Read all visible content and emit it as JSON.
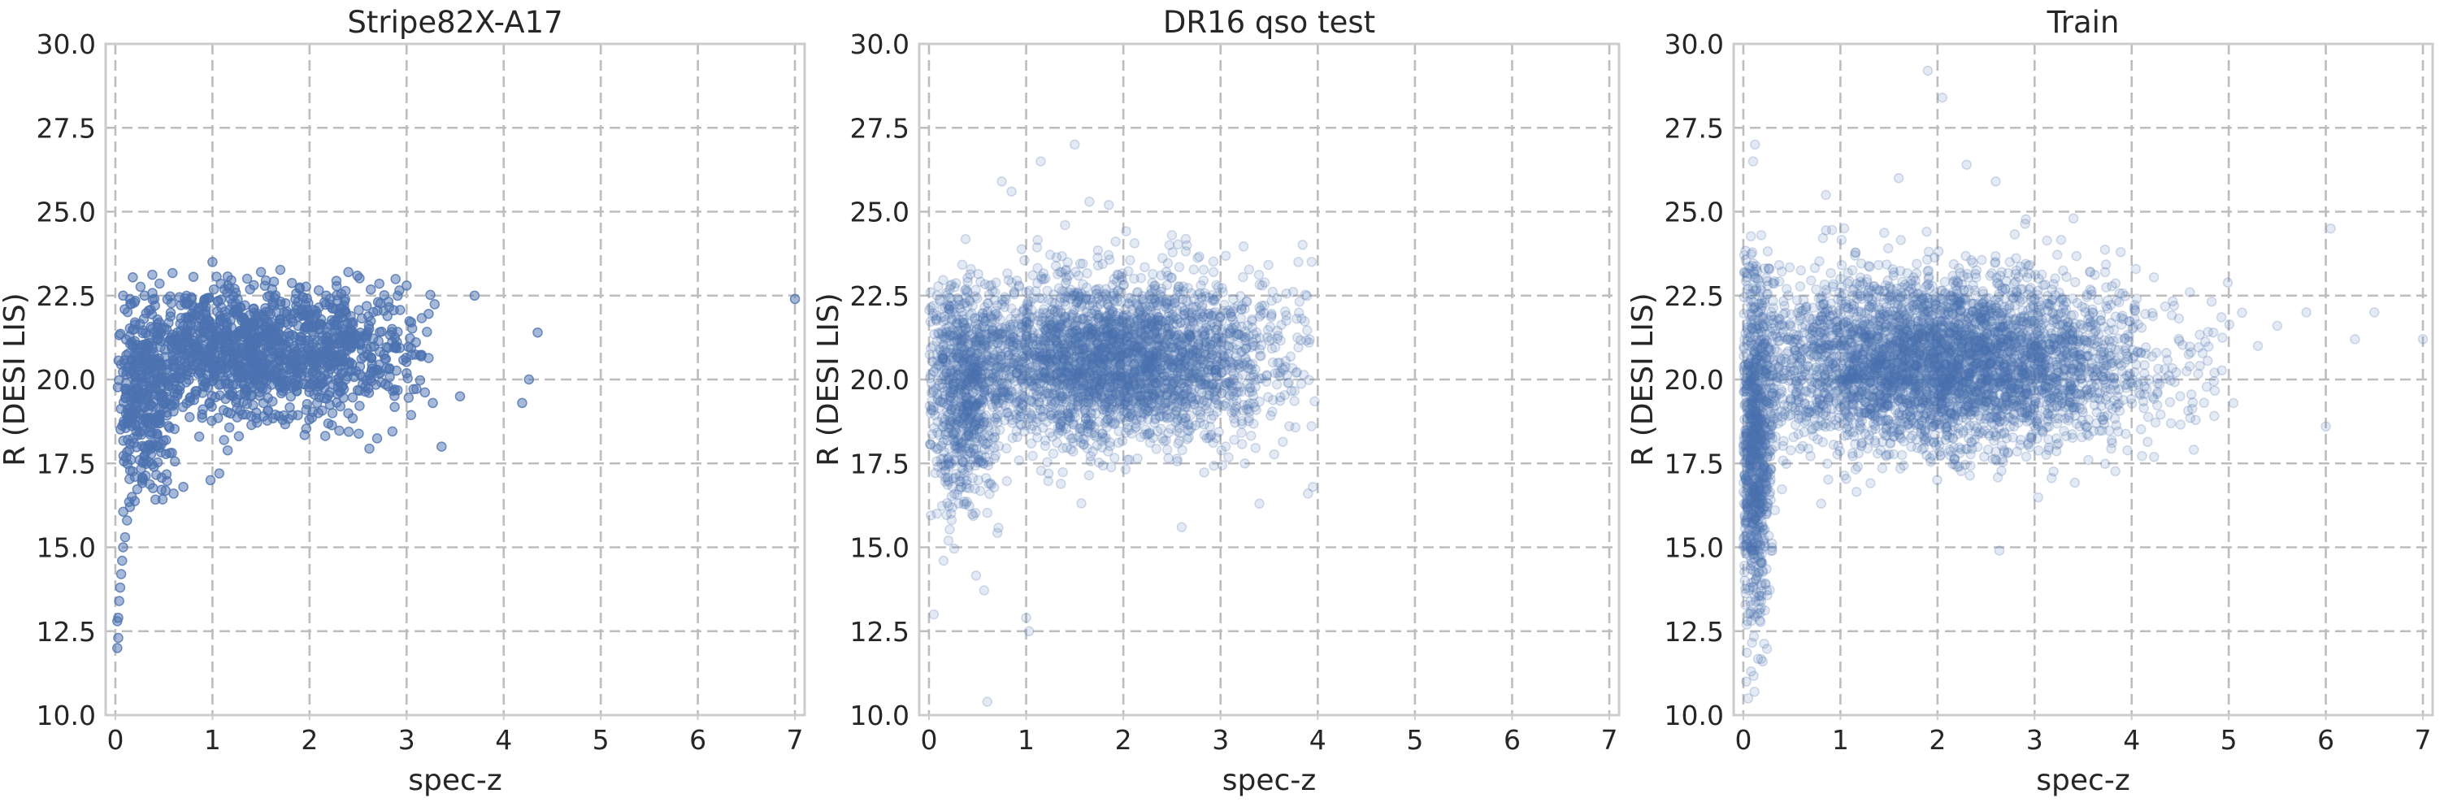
{
  "chart_data": [
    {
      "type": "scatter",
      "title": "Stripe82X-A17",
      "xlabel": "spec-z",
      "ylabel": "R (DESI LIS)",
      "xlim": [
        -0.1,
        7.1
      ],
      "ylim": [
        10.0,
        30.0
      ],
      "xticks": [
        "0",
        "1",
        "2",
        "3",
        "4",
        "5",
        "6",
        "7"
      ],
      "yticks": [
        "10.0",
        "12.5",
        "15.0",
        "17.5",
        "20.0",
        "22.5",
        "25.0",
        "27.5",
        "30.0"
      ],
      "grid": true,
      "marker_color": "#4c72b0",
      "marker_alpha": 0.5,
      "points": [
        [
          0.02,
          12.0
        ],
        [
          0.03,
          12.3
        ],
        [
          0.02,
          12.8
        ],
        [
          0.03,
          12.9
        ],
        [
          0.04,
          13.4
        ],
        [
          0.05,
          13.8
        ],
        [
          0.06,
          14.2
        ],
        [
          0.07,
          14.6
        ],
        [
          0.08,
          15.0
        ],
        [
          0.1,
          15.3
        ],
        [
          0.12,
          15.8
        ],
        [
          0.15,
          16.2
        ],
        [
          0.17,
          16.5
        ],
        [
          0.2,
          17.1
        ],
        [
          0.25,
          17.6
        ],
        [
          0.3,
          18.0
        ],
        [
          0.6,
          16.6
        ],
        [
          0.7,
          16.8
        ],
        [
          0.98,
          17.0
        ],
        [
          1.07,
          17.2
        ],
        [
          3.36,
          18.0
        ],
        [
          3.27,
          19.3
        ],
        [
          3.55,
          19.5
        ],
        [
          4.19,
          19.3
        ],
        [
          4.26,
          20.0
        ],
        [
          4.35,
          21.4
        ],
        [
          3.7,
          22.5
        ],
        [
          3.0,
          22.8
        ],
        [
          1.0,
          23.5
        ],
        [
          1.5,
          23.2
        ],
        [
          2.4,
          23.2
        ],
        [
          0.08,
          22.5
        ],
        [
          0.15,
          22.4
        ],
        [
          0.3,
          22.5
        ],
        [
          7.0,
          22.4
        ]
      ],
      "clouds": [
        {
          "cx": 1.3,
          "cy": 20.8,
          "sx": 0.65,
          "sy": 1.0,
          "n": 1100,
          "xmin": 0.05,
          "xmax": 3.2,
          "ymin": 17.0,
          "ymax": 23.4
        },
        {
          "cx": 0.28,
          "cy": 19.2,
          "sx": 0.16,
          "sy": 1.3,
          "n": 260,
          "xmin": 0.02,
          "xmax": 0.8,
          "ymin": 15.5,
          "ymax": 22.6
        },
        {
          "cx": 2.4,
          "cy": 21.0,
          "sx": 0.45,
          "sy": 1.0,
          "n": 240,
          "xmin": 1.4,
          "xmax": 3.4,
          "ymin": 18.0,
          "ymax": 23.2
        }
      ]
    },
    {
      "type": "scatter",
      "title": "DR16 qso test",
      "xlabel": "spec-z",
      "ylabel": "R (DESI LIS)",
      "xlim": [
        -0.1,
        7.1
      ],
      "ylim": [
        10.0,
        30.0
      ],
      "xticks": [
        "0",
        "1",
        "2",
        "3",
        "4",
        "5",
        "6",
        "7"
      ],
      "yticks": [
        "10.0",
        "12.5",
        "15.0",
        "17.5",
        "20.0",
        "22.5",
        "25.0",
        "27.5",
        "30.0"
      ],
      "grid": true,
      "marker_color": "#4c72b0",
      "marker_alpha": 0.15,
      "points": [
        [
          0.6,
          10.4
        ],
        [
          1.03,
          12.5
        ],
        [
          1.0,
          12.9
        ],
        [
          0.05,
          13.0
        ],
        [
          1.65,
          25.3
        ],
        [
          1.85,
          25.2
        ],
        [
          1.5,
          27.0
        ],
        [
          1.15,
          26.5
        ],
        [
          0.75,
          25.9
        ],
        [
          0.85,
          25.6
        ],
        [
          1.4,
          24.6
        ],
        [
          2.5,
          24.3
        ],
        [
          3.8,
          23.5
        ],
        [
          3.95,
          16.8
        ],
        [
          3.9,
          16.6
        ],
        [
          3.4,
          16.3
        ],
        [
          0.2,
          15.2
        ],
        [
          0.15,
          14.6
        ],
        [
          2.6,
          15.6
        ]
      ],
      "clouds": [
        {
          "cx": 1.9,
          "cy": 20.6,
          "sx": 0.85,
          "sy": 1.2,
          "n": 3200,
          "xmin": 0.0,
          "xmax": 3.98,
          "ymin": 15.0,
          "ymax": 24.5
        },
        {
          "cx": 0.35,
          "cy": 19.6,
          "sx": 0.2,
          "sy": 1.7,
          "n": 700,
          "xmin": 0.0,
          "xmax": 1.0,
          "ymin": 13.5,
          "ymax": 23.0
        }
      ]
    },
    {
      "type": "scatter",
      "title": "Train",
      "xlabel": "spec-z",
      "ylabel": "R (DESI LIS)",
      "xlim": [
        -0.1,
        7.1
      ],
      "ylim": [
        10.0,
        30.0
      ],
      "xticks": [
        "0",
        "1",
        "2",
        "3",
        "4",
        "5",
        "6",
        "7"
      ],
      "yticks": [
        "10.0",
        "12.5",
        "15.0",
        "17.5",
        "20.0",
        "22.5",
        "25.0",
        "27.5",
        "30.0"
      ],
      "grid": true,
      "marker_color": "#4c72b0",
      "marker_alpha": 0.15,
      "points": [
        [
          0.05,
          10.5
        ],
        [
          0.03,
          11.0
        ],
        [
          0.2,
          11.6
        ],
        [
          0.08,
          11.3
        ],
        [
          0.12,
          27.0
        ],
        [
          0.1,
          26.5
        ],
        [
          1.9,
          29.2
        ],
        [
          2.05,
          28.4
        ],
        [
          1.6,
          26.0
        ],
        [
          2.3,
          26.4
        ],
        [
          2.6,
          25.9
        ],
        [
          3.4,
          24.8
        ],
        [
          6.05,
          24.5
        ],
        [
          7.0,
          21.2
        ],
        [
          6.5,
          22.0
        ],
        [
          6.3,
          21.2
        ],
        [
          5.8,
          22.0
        ],
        [
          6.0,
          18.6
        ],
        [
          5.5,
          21.6
        ],
        [
          5.3,
          21.0
        ],
        [
          0.85,
          25.5
        ]
      ],
      "clouds": [
        {
          "cx": 2.0,
          "cy": 20.5,
          "sx": 1.05,
          "sy": 1.25,
          "n": 4200,
          "xmin": 0.0,
          "xmax": 5.15,
          "ymin": 14.8,
          "ymax": 25.2
        },
        {
          "cx": 0.12,
          "cy": 18.2,
          "sx": 0.09,
          "sy": 2.6,
          "n": 900,
          "xmin": 0.0,
          "xmax": 0.5,
          "ymin": 10.6,
          "ymax": 24.5
        }
      ]
    }
  ]
}
